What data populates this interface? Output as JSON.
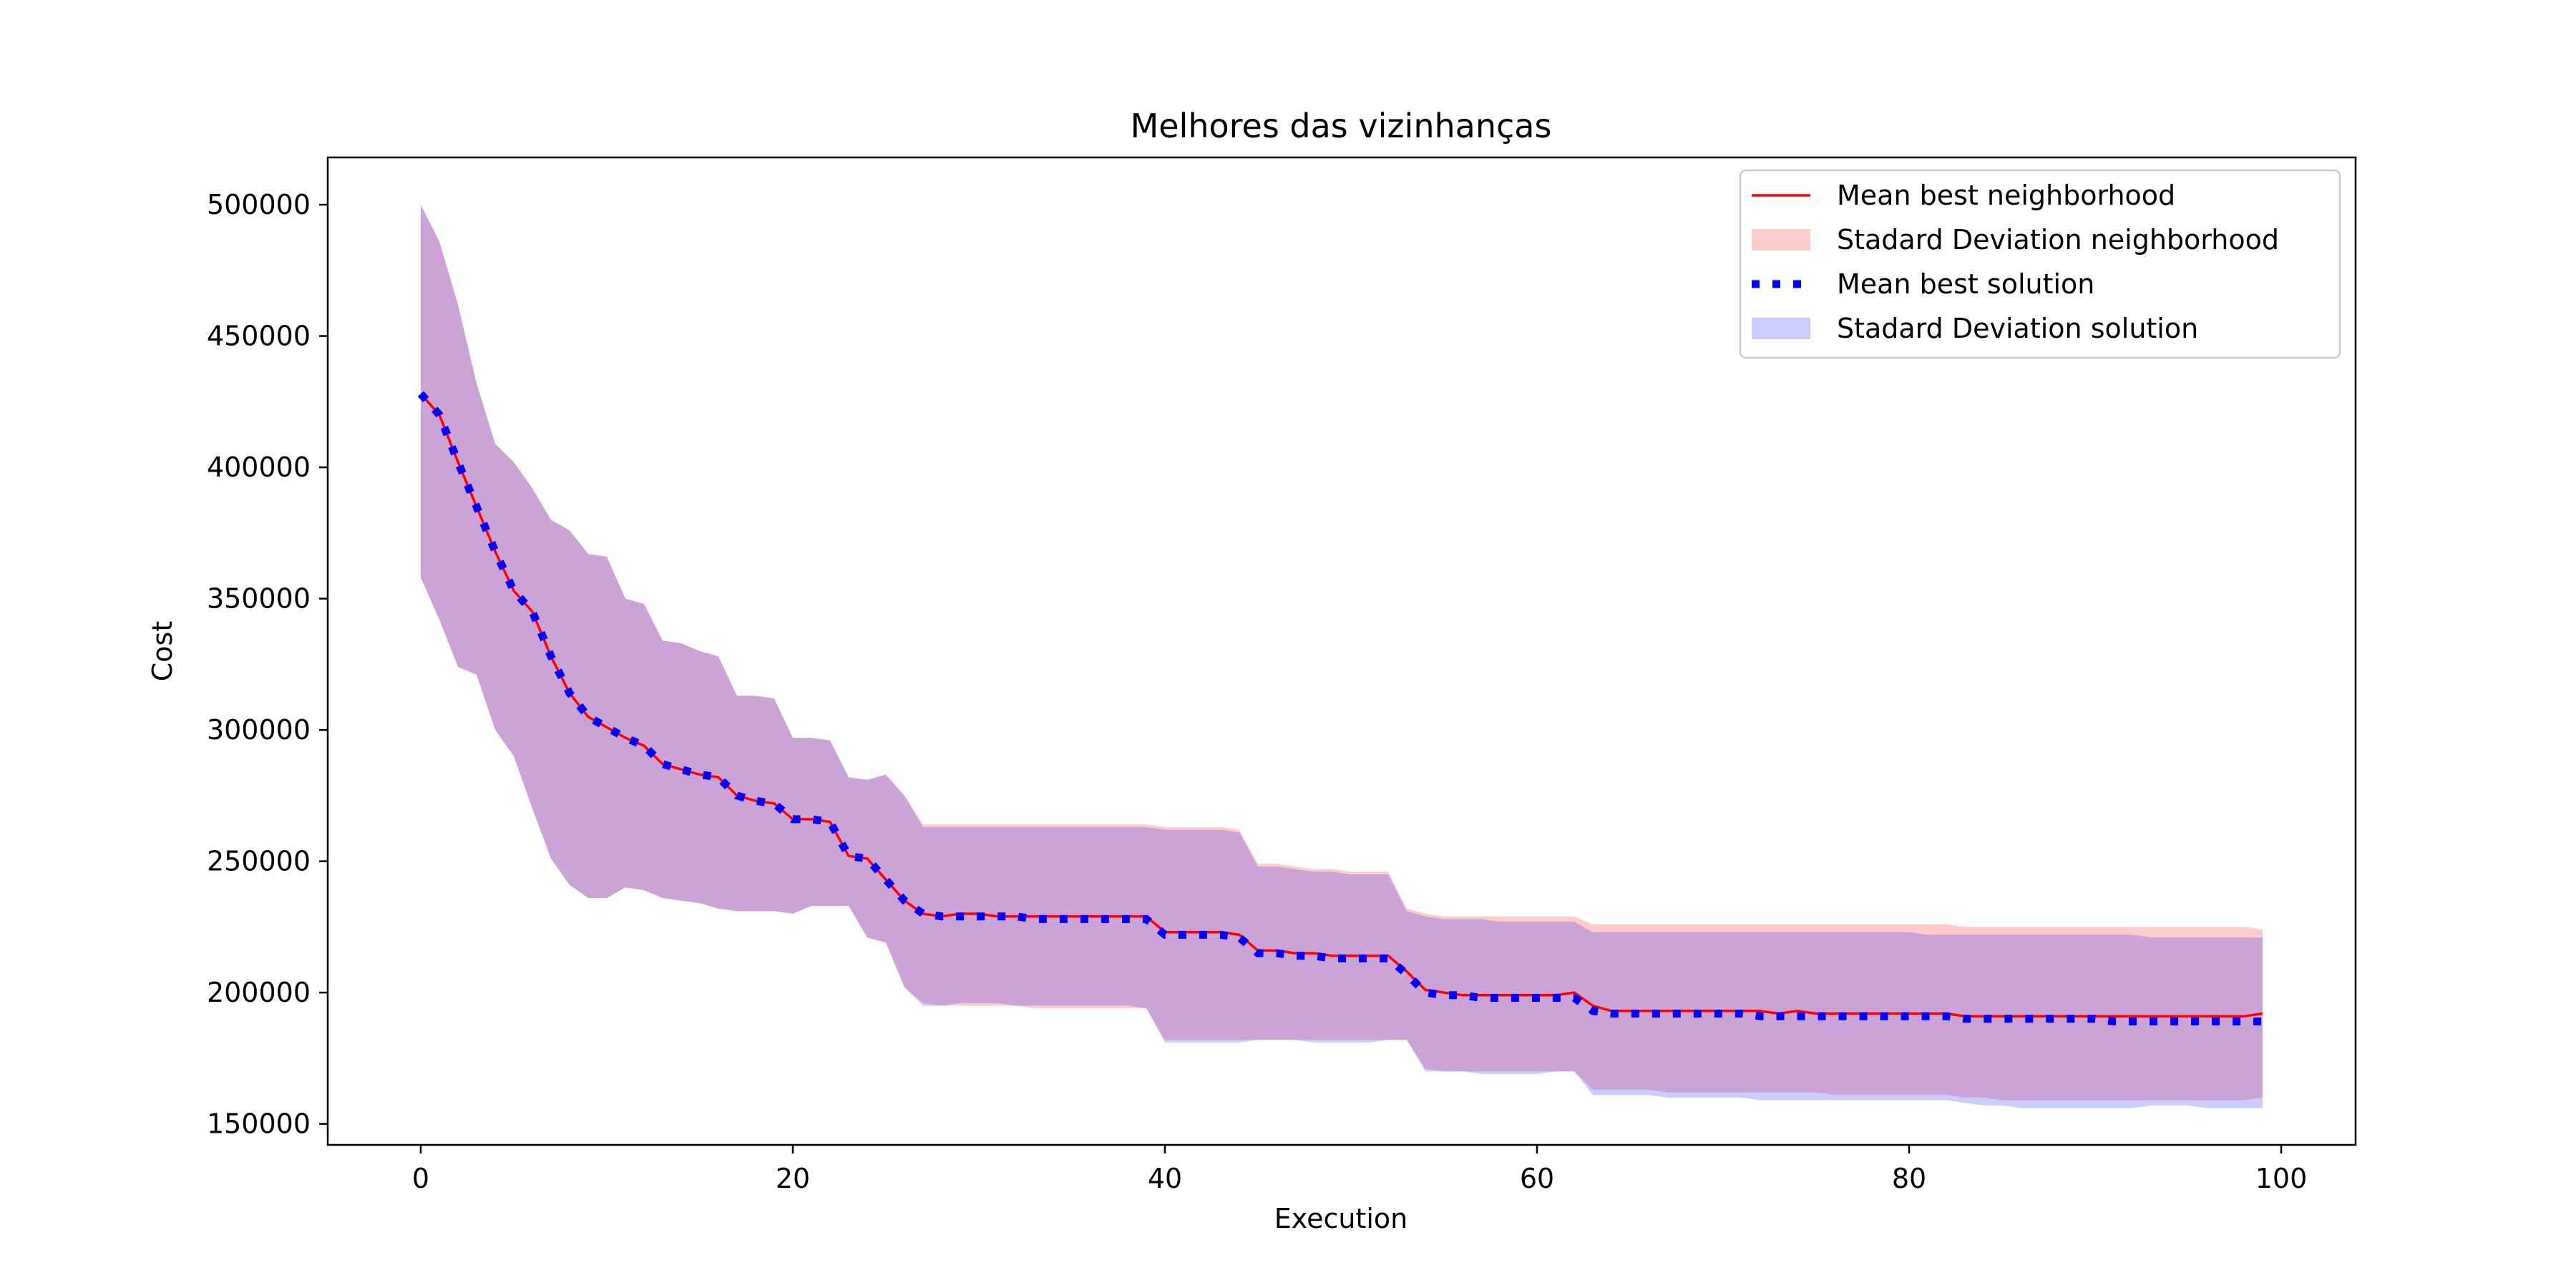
{
  "chart_data": {
    "type": "line",
    "title": "Melhores das vizinhanças",
    "xlabel": "Execution",
    "ylabel": "Cost",
    "xlim": [
      -5,
      104
    ],
    "ylim": [
      142000,
      518000
    ],
    "xticks": [
      0,
      20,
      40,
      60,
      80,
      100
    ],
    "yticks": [
      150000,
      200000,
      250000,
      300000,
      350000,
      400000,
      450000,
      500000
    ],
    "x": [
      0,
      1,
      2,
      3,
      4,
      5,
      6,
      7,
      8,
      9,
      10,
      11,
      12,
      13,
      14,
      15,
      16,
      17,
      18,
      19,
      20,
      21,
      22,
      23,
      24,
      25,
      26,
      27,
      28,
      29,
      30,
      31,
      32,
      33,
      34,
      35,
      36,
      37,
      38,
      39,
      40,
      41,
      42,
      43,
      44,
      45,
      46,
      47,
      48,
      49,
      50,
      51,
      52,
      53,
      54,
      55,
      56,
      57,
      58,
      59,
      60,
      61,
      62,
      63,
      64,
      65,
      66,
      67,
      68,
      69,
      70,
      71,
      72,
      73,
      74,
      75,
      76,
      77,
      78,
      79,
      80,
      81,
      82,
      83,
      84,
      85,
      86,
      87,
      88,
      89,
      90,
      91,
      92,
      93,
      94,
      95,
      96,
      97,
      98,
      99
    ],
    "series": [
      {
        "name": "Mean best neighborhood",
        "color": "#ff0000",
        "style": "solid",
        "values": [
          428000,
          420000,
          402000,
          385000,
          368000,
          353000,
          345000,
          328000,
          314000,
          305000,
          301000,
          297000,
          294000,
          287000,
          285000,
          283000,
          282000,
          275000,
          273000,
          272000,
          266000,
          266000,
          265000,
          252000,
          251000,
          243000,
          235000,
          230000,
          229000,
          230000,
          230000,
          229000,
          229000,
          229000,
          229000,
          229000,
          229000,
          229000,
          229000,
          229000,
          223000,
          223000,
          223000,
          223000,
          222000,
          216000,
          216000,
          215000,
          215000,
          214000,
          214000,
          214000,
          214000,
          208000,
          201000,
          200000,
          199000,
          199000,
          199000,
          199000,
          199000,
          199000,
          200000,
          195000,
          193000,
          193000,
          193000,
          193000,
          193000,
          193000,
          193000,
          193000,
          193000,
          192000,
          193000,
          192000,
          192000,
          192000,
          192000,
          192000,
          192000,
          192000,
          192000,
          191000,
          191000,
          191000,
          191000,
          191000,
          191000,
          191000,
          191000,
          191000,
          191000,
          191000,
          191000,
          191000,
          191000,
          191000,
          191000,
          192000
        ],
        "std_label": "Stadard Deviation neighborhood",
        "std_color": "#ff0000",
        "upper": [
          500000,
          486000,
          462000,
          432000,
          409000,
          402000,
          392000,
          380000,
          376000,
          367000,
          366000,
          350000,
          348000,
          334000,
          333000,
          330000,
          328000,
          313000,
          313000,
          312000,
          297000,
          297000,
          296000,
          282000,
          281000,
          283000,
          275000,
          264000,
          264000,
          264000,
          264000,
          264000,
          264000,
          264000,
          264000,
          264000,
          264000,
          264000,
          264000,
          264000,
          263000,
          263000,
          263000,
          263000,
          262000,
          249000,
          249000,
          248000,
          247000,
          247000,
          246000,
          246000,
          246000,
          232000,
          230000,
          229000,
          229000,
          229000,
          229000,
          229000,
          229000,
          229000,
          229000,
          226000,
          226000,
          226000,
          226000,
          226000,
          226000,
          226000,
          226000,
          226000,
          226000,
          226000,
          226000,
          226000,
          226000,
          226000,
          226000,
          226000,
          226000,
          226000,
          226000,
          225000,
          225000,
          225000,
          225000,
          225000,
          225000,
          225000,
          225000,
          225000,
          225000,
          225000,
          225000,
          225000,
          225000,
          225000,
          225000,
          224000
        ],
        "lower": [
          358000,
          342000,
          324000,
          321000,
          300000,
          290000,
          270000,
          251000,
          241000,
          236000,
          236000,
          240000,
          239000,
          236000,
          235000,
          234000,
          232000,
          231000,
          231000,
          231000,
          230000,
          233000,
          233000,
          233000,
          221000,
          219000,
          202000,
          196000,
          195000,
          195000,
          195000,
          195000,
          195000,
          194000,
          194000,
          194000,
          194000,
          194000,
          194000,
          194000,
          182000,
          182000,
          182000,
          182000,
          182000,
          182000,
          182000,
          182000,
          182000,
          182000,
          182000,
          182000,
          182000,
          182000,
          171000,
          170000,
          170000,
          170000,
          170000,
          170000,
          170000,
          170000,
          170000,
          163000,
          163000,
          163000,
          163000,
          162000,
          162000,
          162000,
          162000,
          162000,
          162000,
          162000,
          162000,
          162000,
          161000,
          161000,
          161000,
          161000,
          161000,
          161000,
          161000,
          160000,
          160000,
          159000,
          159000,
          159000,
          159000,
          159000,
          159000,
          159000,
          159000,
          159000,
          159000,
          159000,
          159000,
          159000,
          159000,
          160000
        ]
      },
      {
        "name": "Mean best solution",
        "color": "#0000ff",
        "style": "dotted",
        "values": [
          428000,
          420000,
          402000,
          385000,
          368000,
          353000,
          345000,
          328000,
          314000,
          305000,
          301000,
          297000,
          294000,
          287000,
          285000,
          283000,
          282000,
          275000,
          273000,
          272000,
          266000,
          266000,
          265000,
          252000,
          251000,
          243000,
          235000,
          230000,
          229000,
          229000,
          229000,
          229000,
          229000,
          228000,
          228000,
          228000,
          228000,
          228000,
          228000,
          228000,
          222000,
          222000,
          222000,
          222000,
          221000,
          215000,
          215000,
          214000,
          214000,
          213000,
          213000,
          213000,
          213000,
          207000,
          200000,
          199000,
          199000,
          198000,
          198000,
          198000,
          198000,
          198000,
          198000,
          193000,
          192000,
          192000,
          192000,
          192000,
          192000,
          192000,
          192000,
          192000,
          191000,
          191000,
          191000,
          191000,
          191000,
          191000,
          191000,
          191000,
          191000,
          191000,
          191000,
          190000,
          190000,
          190000,
          190000,
          190000,
          190000,
          190000,
          190000,
          189000,
          189000,
          189000,
          189000,
          189000,
          189000,
          189000,
          189000,
          189000
        ],
        "std_label": "Stadard Deviation solution",
        "std_color": "#0000ff",
        "upper": [
          500000,
          486000,
          462000,
          432000,
          409000,
          402000,
          392000,
          380000,
          376000,
          367000,
          366000,
          350000,
          348000,
          334000,
          333000,
          330000,
          328000,
          313000,
          313000,
          312000,
          297000,
          297000,
          296000,
          282000,
          281000,
          283000,
          275000,
          263000,
          263000,
          263000,
          263000,
          263000,
          263000,
          263000,
          263000,
          263000,
          263000,
          263000,
          263000,
          263000,
          262000,
          262000,
          262000,
          262000,
          261000,
          248000,
          248000,
          247000,
          246000,
          246000,
          245000,
          245000,
          245000,
          231000,
          229000,
          228000,
          228000,
          228000,
          227000,
          227000,
          227000,
          227000,
          227000,
          223000,
          223000,
          223000,
          223000,
          223000,
          223000,
          223000,
          223000,
          223000,
          223000,
          223000,
          223000,
          223000,
          223000,
          223000,
          223000,
          223000,
          223000,
          222000,
          222000,
          222000,
          222000,
          222000,
          222000,
          222000,
          222000,
          222000,
          222000,
          222000,
          222000,
          221000,
          221000,
          221000,
          221000,
          221000,
          221000,
          221000
        ],
        "lower": [
          358000,
          342000,
          324000,
          321000,
          300000,
          290000,
          270000,
          251000,
          241000,
          236000,
          236000,
          240000,
          239000,
          236000,
          235000,
          234000,
          232000,
          231000,
          231000,
          231000,
          230000,
          233000,
          233000,
          233000,
          221000,
          219000,
          202000,
          195000,
          195000,
          196000,
          196000,
          196000,
          195000,
          195000,
          195000,
          195000,
          195000,
          195000,
          195000,
          194000,
          181000,
          181000,
          181000,
          181000,
          181000,
          182000,
          182000,
          182000,
          181000,
          181000,
          181000,
          181000,
          182000,
          182000,
          170000,
          170000,
          170000,
          169000,
          169000,
          169000,
          169000,
          170000,
          170000,
          161000,
          161000,
          161000,
          161000,
          160000,
          160000,
          160000,
          160000,
          160000,
          159000,
          159000,
          159000,
          159000,
          159000,
          159000,
          159000,
          159000,
          159000,
          159000,
          159000,
          158000,
          157000,
          157000,
          156000,
          156000,
          156000,
          156000,
          156000,
          156000,
          156000,
          157000,
          157000,
          157000,
          156000,
          156000,
          156000,
          156000
        ]
      }
    ],
    "legend": {
      "placement": "top-right",
      "entries": [
        {
          "label": "Mean best neighborhood",
          "kind": "line",
          "color": "#ff0000"
        },
        {
          "label": "Stadard Deviation neighborhood",
          "kind": "patch",
          "color": "#ff0000"
        },
        {
          "label": "Mean best solution",
          "kind": "dotted",
          "color": "#0000ff"
        },
        {
          "label": "Stadard Deviation solution",
          "kind": "patch",
          "color": "#0000ff"
        }
      ]
    },
    "grid": false
  }
}
